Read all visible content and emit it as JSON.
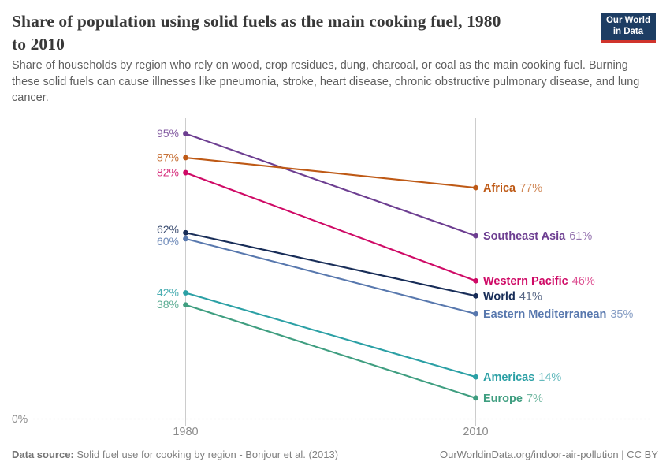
{
  "header": {
    "title": "Share of population using solid fuels as the main cooking fuel, 1980\nto 2010",
    "subtitle": "Share of households by region who rely on wood, crop residues, dung, charcoal, or coal as the main cooking fuel. Burning these solid fuels can cause illnesses like pneumonia, stroke, heart disease, chronic obstructive pulmonary disease, and lung cancer.",
    "logo": {
      "line1": "Our World",
      "line2": "in Data",
      "bg_color": "#1d3d63",
      "accent_color": "#d0342c"
    }
  },
  "chart_data": {
    "type": "line",
    "subtype": "slope",
    "x": [
      1980,
      2010
    ],
    "x_tick_labels": [
      "1980",
      "2010"
    ],
    "ylim": [
      0,
      100
    ],
    "y_baseline_label": "0%",
    "value_suffix": "%",
    "grid": "baseline-dotted-only",
    "legend_position": "right-inline",
    "series": [
      {
        "name": "Africa",
        "values": [
          87,
          77
        ],
        "color": "#be5915"
      },
      {
        "name": "Southeast Asia",
        "values": [
          95,
          61
        ],
        "color": "#6d3e91"
      },
      {
        "name": "Western Pacific",
        "values": [
          82,
          46
        ],
        "color": "#cf0a66"
      },
      {
        "name": "World",
        "values": [
          62,
          41
        ],
        "color": "#182d58"
      },
      {
        "name": "Eastern Mediterranean",
        "values": [
          60,
          35
        ],
        "color": "#5878ae"
      },
      {
        "name": "Americas",
        "values": [
          42,
          14
        ],
        "color": "#2ba0a5"
      },
      {
        "name": "Europe",
        "values": [
          38,
          7
        ],
        "color": "#3f9e80"
      }
    ]
  },
  "footer": {
    "source_label": "Data source:",
    "source_text": " Solid fuel use for cooking by region - Bonjour et al. (2013)",
    "credit": "OurWorldinData.org/indoor-air-pollution | CC BY"
  }
}
